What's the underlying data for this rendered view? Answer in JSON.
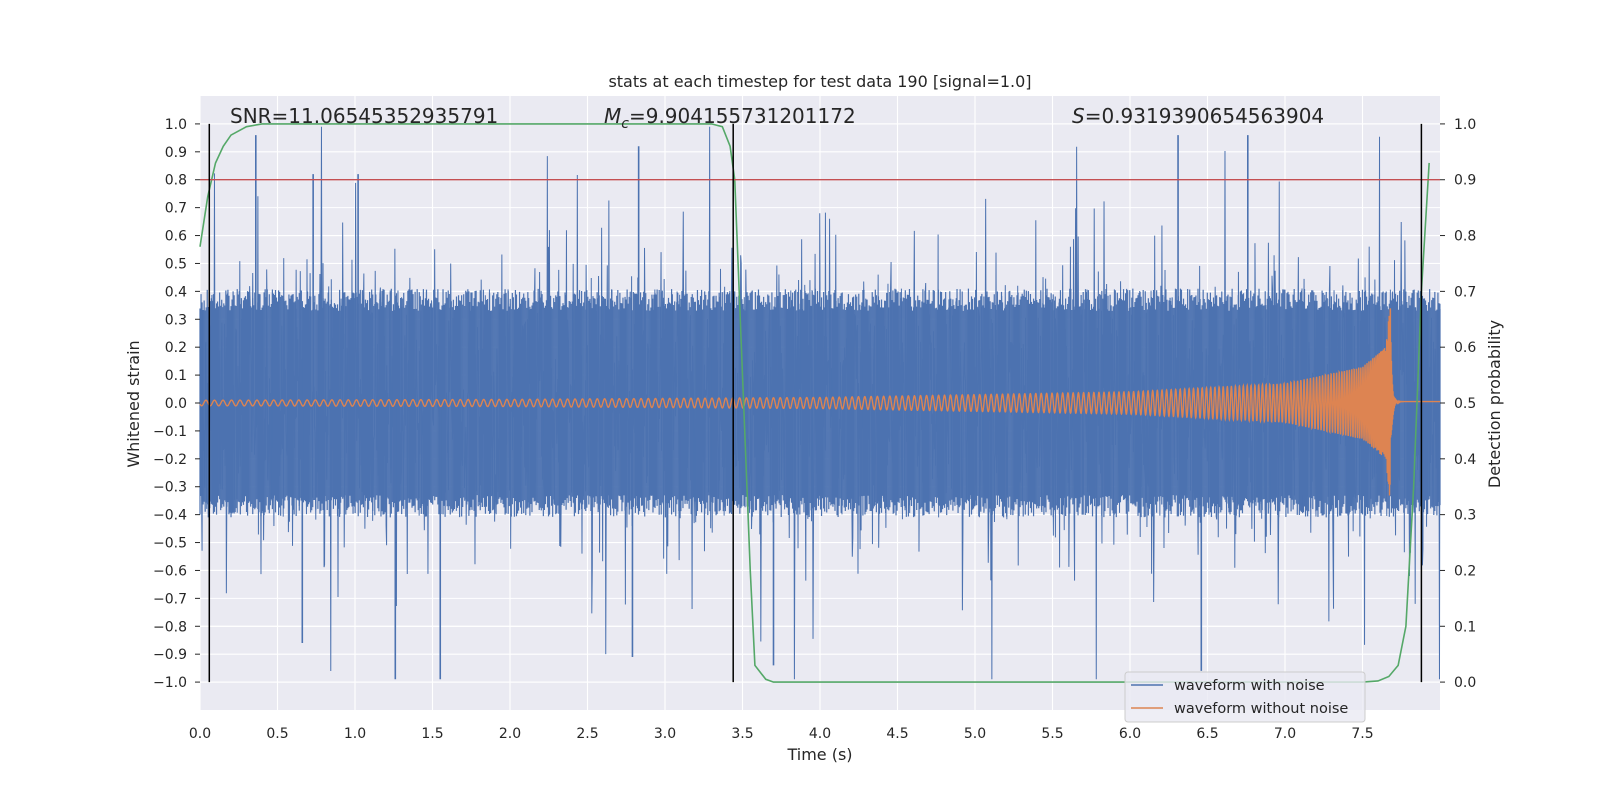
{
  "chart_data": {
    "type": "line",
    "title": "stats at each timestep for test data 190 [signal=1.0]",
    "xlabel": "Time (s)",
    "ylabel": "Whitened strain",
    "y2label": "Detection probability",
    "xlim": [
      0.0,
      8.0
    ],
    "ylim": [
      -1.1,
      1.1
    ],
    "y2lim": [
      -0.05,
      1.05
    ],
    "xticks": [
      "0.0",
      "0.5",
      "1.0",
      "1.5",
      "2.0",
      "2.5",
      "3.0",
      "3.5",
      "4.0",
      "4.5",
      "5.0",
      "5.5",
      "6.0",
      "6.5",
      "7.0",
      "7.5"
    ],
    "yticks": [
      "1.0",
      "0.9",
      "0.8",
      "0.7",
      "0.6",
      "0.5",
      "0.4",
      "0.3",
      "0.2",
      "0.1",
      "0.0",
      "−0.1",
      "−0.2",
      "−0.3",
      "−0.4",
      "−0.5",
      "−0.6",
      "−0.7",
      "−0.8",
      "−0.9",
      "−1.0"
    ],
    "y2ticks": [
      "1.0",
      "0.9",
      "0.8",
      "0.7",
      "0.6",
      "0.5",
      "0.4",
      "0.3",
      "0.2",
      "0.1",
      "0.0"
    ],
    "grid": true,
    "legend_position": "lower-right",
    "stats": {
      "snr": "SNR=11.06545352935791",
      "mc_symbol": "M",
      "mc_sub": "c",
      "mc_value": "=9.904155731201172",
      "s_symbol": "S",
      "s_value": "=0.9319390654563904"
    },
    "series": [
      {
        "name": "waveform with noise",
        "color": "#4c72b0",
        "axis": "left",
        "description": "noisy whitened strain, roughly between -1.0 and 1.0",
        "peak_spikes": [
          {
            "x": 0.36,
            "y": 0.96
          },
          {
            "x": 0.73,
            "y": 0.82
          },
          {
            "x": 1.02,
            "y": 0.82
          },
          {
            "x": 2.83,
            "y": 0.92
          },
          {
            "x": 6.31,
            "y": 0.96
          },
          {
            "x": 6.76,
            "y": 0.96
          },
          {
            "x": 1.26,
            "y": -0.99
          },
          {
            "x": 1.55,
            "y": -0.99
          },
          {
            "x": 0.66,
            "y": -0.86
          },
          {
            "x": 2.79,
            "y": -0.91
          },
          {
            "x": 6.46,
            "y": -0.96
          },
          {
            "x": 3.7,
            "y": -0.94
          }
        ]
      },
      {
        "name": "waveform without noise",
        "color": "#dd8452",
        "axis": "left",
        "description": "chirp signal whose amplitude and frequency grow until merger near t=7.68 s",
        "amplitude_points": [
          [
            0.0,
            0.01
          ],
          [
            2.0,
            0.013
          ],
          [
            4.0,
            0.02
          ],
          [
            6.0,
            0.04
          ],
          [
            7.0,
            0.07
          ],
          [
            7.5,
            0.13
          ],
          [
            7.65,
            0.2
          ],
          [
            7.68,
            0.37
          ]
        ],
        "merger_time": 7.68
      },
      {
        "name": "detection probability",
        "color": "#55a868",
        "axis": "right",
        "points": [
          [
            0.0,
            0.78
          ],
          [
            0.05,
            0.87
          ],
          [
            0.1,
            0.93
          ],
          [
            0.15,
            0.96
          ],
          [
            0.2,
            0.98
          ],
          [
            0.3,
            0.995
          ],
          [
            0.4,
            1.0
          ],
          [
            3.3,
            1.0
          ],
          [
            3.37,
            0.995
          ],
          [
            3.42,
            0.96
          ],
          [
            3.45,
            0.9
          ],
          [
            3.5,
            0.55
          ],
          [
            3.55,
            0.2
          ],
          [
            3.58,
            0.03
          ],
          [
            3.65,
            0.005
          ],
          [
            3.7,
            0.0
          ],
          [
            7.5,
            0.0
          ],
          [
            7.6,
            0.002
          ],
          [
            7.67,
            0.01
          ],
          [
            7.73,
            0.03
          ],
          [
            7.78,
            0.1
          ],
          [
            7.83,
            0.35
          ],
          [
            7.88,
            0.7
          ],
          [
            7.93,
            0.93
          ]
        ]
      }
    ],
    "threshold": {
      "value": 0.9,
      "axis": "right",
      "color": "#c44e52"
    },
    "vlines": [
      0.06,
      3.44,
      7.88
    ],
    "vline_color": "#000000"
  }
}
